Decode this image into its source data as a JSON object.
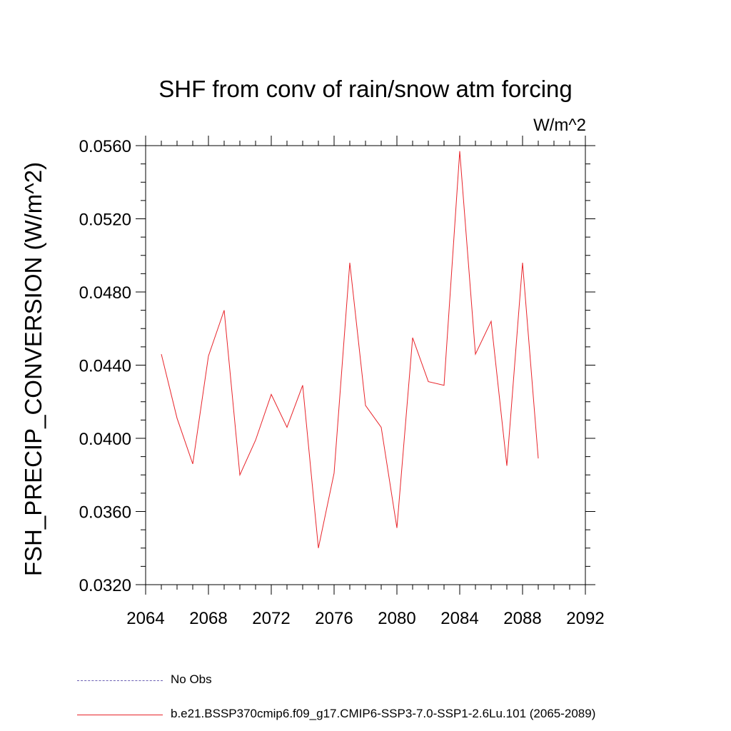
{
  "chart_data": {
    "type": "line",
    "title": "SHF from conv of rain/snow atm forcing",
    "units_label": "W/m^2",
    "xlabel": "",
    "ylabel": "FSH_PRECIP_CONVERSION  (W/m^2)",
    "xlim": [
      2064,
      2092
    ],
    "ylim": [
      0.032,
      0.056
    ],
    "x_ticks": [
      "2064",
      "2068",
      "2072",
      "2076",
      "2080",
      "2084",
      "2088",
      "2092"
    ],
    "y_ticks": [
      "0.0320",
      "0.0360",
      "0.0400",
      "0.0440",
      "0.0480",
      "0.0520",
      "0.0560"
    ],
    "grid": false,
    "legend_position": "bottom-left",
    "series": [
      {
        "name": "b.e21.BSSP370cmip6.f09_g17.CMIP6-SSP3-7.0-SSP1-2.6Lu.101 (2065-2089)",
        "color": "#e8242a",
        "x": [
          2065,
          2066,
          2067,
          2068,
          2069,
          2070,
          2071,
          2072,
          2073,
          2074,
          2075,
          2076,
          2077,
          2078,
          2079,
          2080,
          2081,
          2082,
          2083,
          2084,
          2085,
          2086,
          2087,
          2088,
          2089
        ],
        "values": [
          0.0446,
          0.0411,
          0.0386,
          0.0445,
          0.047,
          0.038,
          0.0399,
          0.0424,
          0.0406,
          0.0429,
          0.034,
          0.0381,
          0.0496,
          0.0418,
          0.0406,
          0.0351,
          0.0455,
          0.0431,
          0.0429,
          0.0557,
          0.0446,
          0.0464,
          0.0385,
          0.0496,
          0.0389
        ]
      }
    ],
    "legend": [
      {
        "label": "No Obs",
        "color": "#6a5fb3",
        "style": "dashed"
      },
      {
        "label": "b.e21.BSSP370cmip6.f09_g17.CMIP6-SSP3-7.0-SSP1-2.6Lu.101 (2065-2089)",
        "color": "#e8242a",
        "style": "solid"
      }
    ]
  }
}
